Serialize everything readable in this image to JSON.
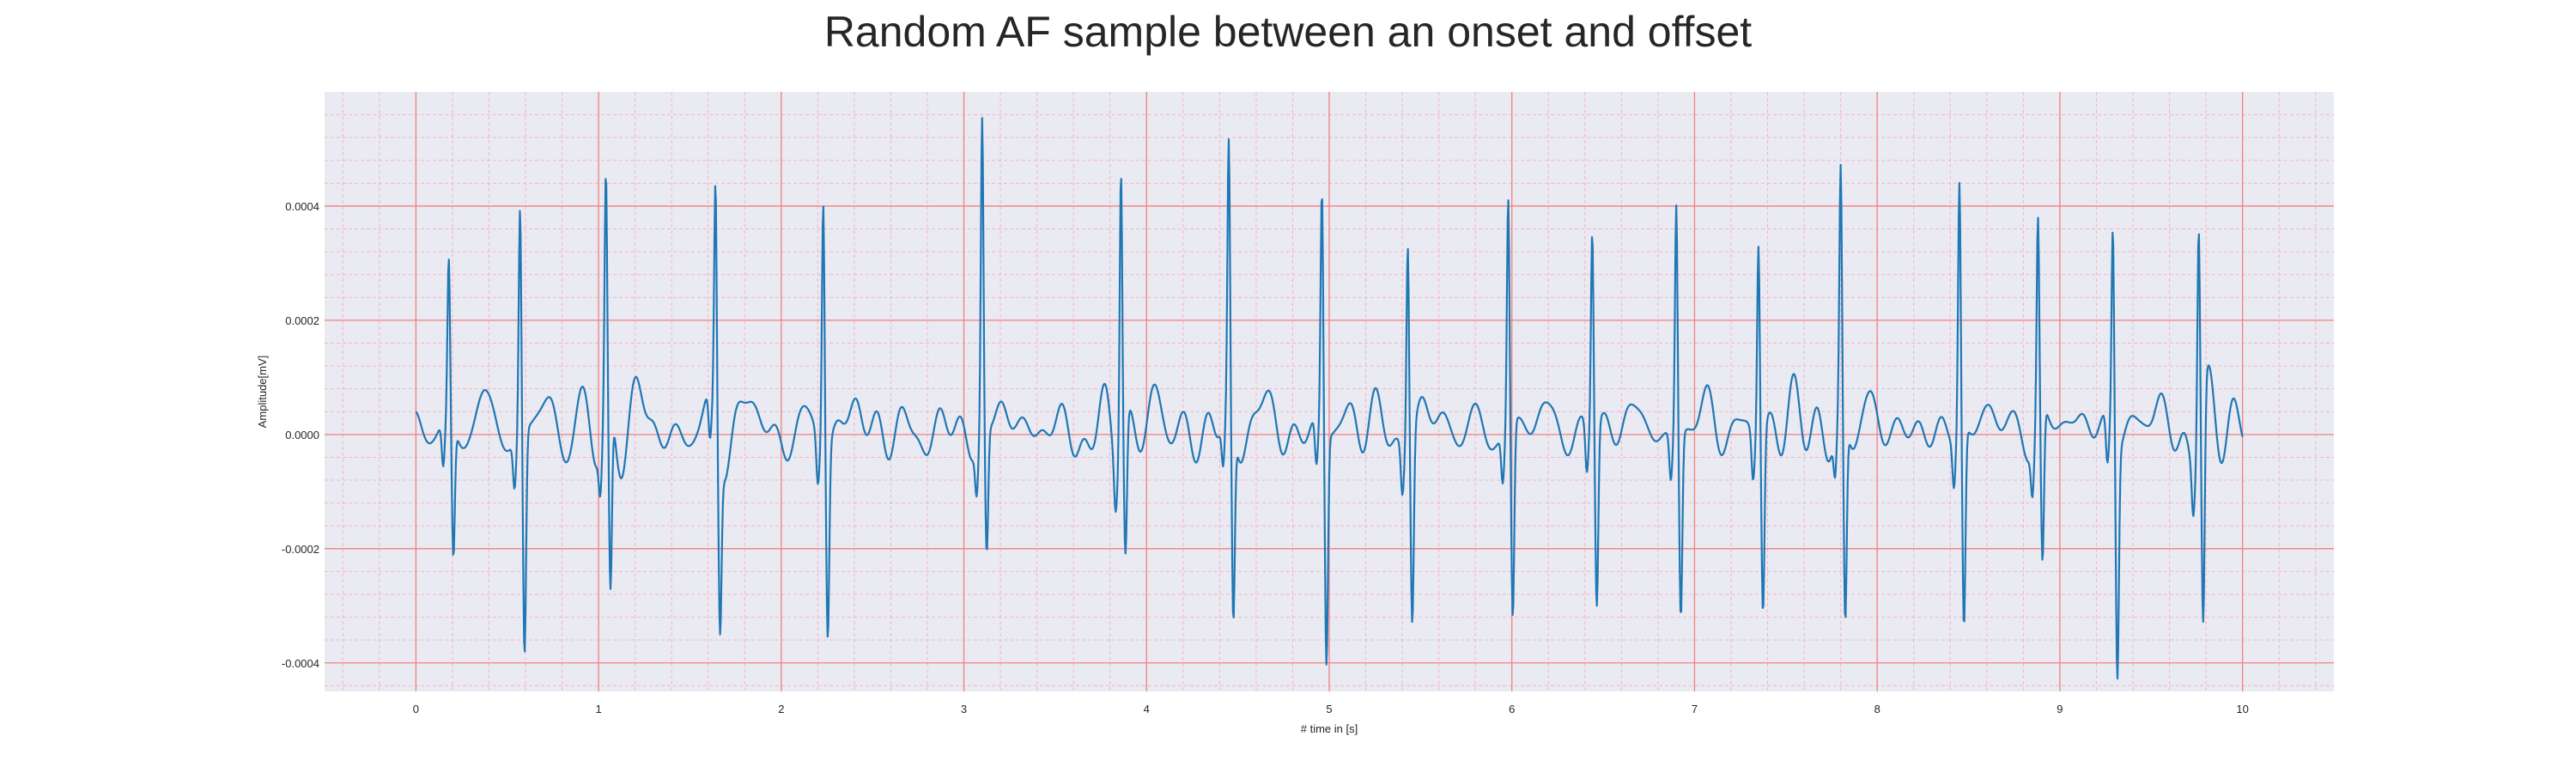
{
  "chart_data": {
    "type": "line",
    "title": "Random AF sample between an onset and offset",
    "xlabel": "# time in [s]",
    "ylabel": "Amplitude[mV]",
    "xlim": [
      -0.5,
      10.5
    ],
    "ylim": [
      -0.00045,
      0.0006
    ],
    "x_ticks": [
      0,
      1,
      2,
      3,
      4,
      5,
      6,
      7,
      8,
      9,
      10
    ],
    "x_tick_labels": [
      "0",
      "1",
      "2",
      "3",
      "4",
      "5",
      "6",
      "7",
      "8",
      "9",
      "10"
    ],
    "y_ticks": [
      -0.0004,
      -0.0002,
      0.0,
      0.0002,
      0.0004
    ],
    "y_tick_labels": [
      "-0.0004",
      "-0.0002",
      "0.0000",
      "0.0002",
      "0.0004"
    ],
    "grid": true,
    "colors": {
      "line": "#1f77b4",
      "major_grid": "#f08080",
      "minor_grid": "#f4b6c2",
      "background": "#eaeaf2"
    },
    "series": [
      {
        "beats": [
          {
            "t": 0.18,
            "peak": 0.00028,
            "trough": -0.00023
          },
          {
            "t": 0.57,
            "peak": 0.0004,
            "trough": -0.00039
          },
          {
            "t": 1.04,
            "peak": 0.00041,
            "trough": -0.00033
          },
          {
            "t": 1.64,
            "peak": 0.00042,
            "trough": -0.0003
          },
          {
            "t": 2.23,
            "peak": 0.00044,
            "trough": -0.00033
          },
          {
            "t": 3.1,
            "peak": 0.00055,
            "trough": -0.00022
          },
          {
            "t": 3.86,
            "peak": 0.0005,
            "trough": -0.00023
          },
          {
            "t": 4.45,
            "peak": 0.00047,
            "trough": -0.00034
          },
          {
            "t": 4.96,
            "peak": 0.00042,
            "trough": -0.0004
          },
          {
            "t": 5.43,
            "peak": 0.00037,
            "trough": -0.00032
          },
          {
            "t": 5.98,
            "peak": 0.00041,
            "trough": -0.00034
          },
          {
            "t": 6.44,
            "peak": 0.00036,
            "trough": -0.00031
          },
          {
            "t": 6.9,
            "peak": 0.00041,
            "trough": -0.00032
          },
          {
            "t": 7.35,
            "peak": 0.00035,
            "trough": -0.00031
          },
          {
            "t": 7.8,
            "peak": 0.00043,
            "trough": -0.00035
          },
          {
            "t": 8.45,
            "peak": 0.00044,
            "trough": -0.00035
          },
          {
            "t": 8.88,
            "peak": 0.00036,
            "trough": -0.00027
          },
          {
            "t": 9.29,
            "peak": 0.00037,
            "trough": -0.0004
          },
          {
            "t": 9.76,
            "peak": 0.00039,
            "trough": -0.00039
          }
        ]
      }
    ]
  }
}
